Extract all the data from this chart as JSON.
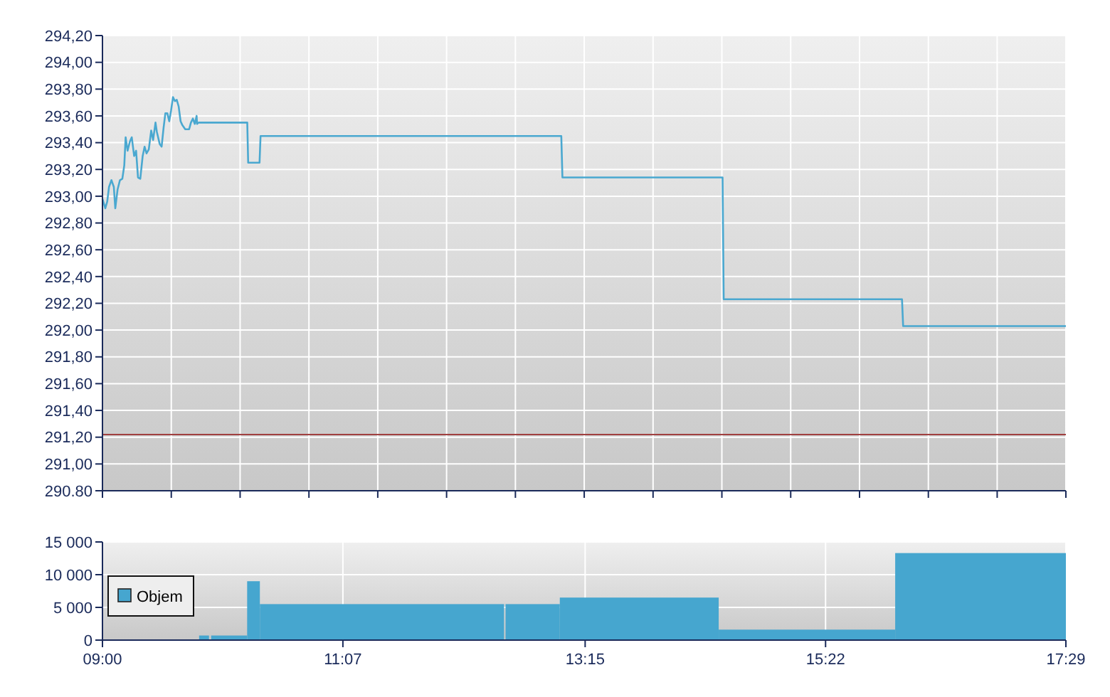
{
  "chart_data": [
    {
      "type": "line",
      "series": [
        {
          "color": "#4aa8d0",
          "x": [
            9.0,
            9.025,
            9.042,
            9.058,
            9.079,
            9.1,
            9.113,
            9.133,
            9.154,
            9.175,
            9.192,
            9.204,
            9.221,
            9.242,
            9.258,
            9.279,
            9.296,
            9.313,
            9.333,
            9.354,
            9.371,
            9.388,
            9.408,
            9.429,
            9.446,
            9.467,
            9.479,
            9.504,
            9.521,
            9.538,
            9.554,
            9.571,
            9.588,
            9.604,
            9.621,
            9.638,
            9.654,
            9.671,
            9.688,
            9.704,
            9.729,
            9.763,
            9.779,
            9.796,
            9.813,
            9.829,
            9.833,
            9.846,
            10.275,
            10.283,
            10.383,
            10.392,
            13.04,
            13.05,
            14.46,
            14.47,
            16.04,
            16.05,
            17.483
          ],
          "values": [
            292.98,
            292.91,
            292.96,
            293.07,
            293.12,
            293.07,
            292.91,
            293.05,
            293.12,
            293.13,
            293.23,
            293.44,
            293.34,
            293.41,
            293.44,
            293.3,
            293.34,
            293.14,
            293.13,
            293.3,
            293.37,
            293.32,
            293.35,
            293.49,
            293.42,
            293.55,
            293.48,
            293.39,
            293.37,
            293.51,
            293.62,
            293.62,
            293.56,
            293.64,
            293.74,
            293.71,
            293.72,
            293.67,
            293.56,
            293.53,
            293.5,
            293.5,
            293.55,
            293.58,
            293.54,
            293.6,
            293.54,
            293.55,
            293.55,
            293.25,
            293.25,
            293.45,
            293.45,
            293.14,
            293.14,
            292.23,
            292.23,
            292.03,
            292.03
          ]
        }
      ],
      "xlim": [
        9,
        17.483
      ],
      "xticks": [
        {
          "value": 9,
          "label": null
        },
        {
          "value": 9.606,
          "label": null
        },
        {
          "value": 10.212,
          "label": null
        },
        {
          "value": 10.818,
          "label": null
        },
        {
          "value": 11.424,
          "label": null
        },
        {
          "value": 12.03,
          "label": null
        },
        {
          "value": 12.636,
          "label": null
        },
        {
          "value": 13.242,
          "label": null
        },
        {
          "value": 13.848,
          "label": null
        },
        {
          "value": 14.454,
          "label": null
        },
        {
          "value": 15.06,
          "label": null
        },
        {
          "value": 15.666,
          "label": null
        },
        {
          "value": 16.272,
          "label": null
        },
        {
          "value": 16.878,
          "label": null
        },
        {
          "value": 17.483,
          "label": null
        }
      ],
      "ylim": [
        290.8,
        294.2
      ],
      "yticks": [
        {
          "value": 290.8,
          "label": "290.80"
        },
        {
          "value": 291.0,
          "label": "291,00"
        },
        {
          "value": 291.2,
          "label": "291,20"
        },
        {
          "value": 291.4,
          "label": "291,40"
        },
        {
          "value": 291.6,
          "label": "291,60"
        },
        {
          "value": 291.8,
          "label": "291,80"
        },
        {
          "value": 292.0,
          "label": "292,00"
        },
        {
          "value": 292.2,
          "label": "292,20"
        },
        {
          "value": 292.4,
          "label": "292,40"
        },
        {
          "value": 292.6,
          "label": "292,60"
        },
        {
          "value": 292.8,
          "label": "292,80"
        },
        {
          "value": 293.0,
          "label": "293,00"
        },
        {
          "value": 293.2,
          "label": "293,20"
        },
        {
          "value": 293.4,
          "label": "293,40"
        },
        {
          "value": 293.6,
          "label": "293,60"
        },
        {
          "value": 293.8,
          "label": "293,80"
        },
        {
          "value": 294.0,
          "label": "294,00"
        },
        {
          "value": 294.2,
          "label": "294,20"
        }
      ],
      "grid": true,
      "tick_labels": "y",
      "ref_lines": [
        {
          "axis": "y",
          "value": 291.22,
          "color": "#a04040"
        }
      ]
    },
    {
      "type": "histogram",
      "bins": [
        9.851,
        9.938,
        9.957,
        10.274,
        10.386,
        12.536,
        12.549,
        13.027,
        14.426,
        15.98,
        17.483
      ],
      "series": [
        {
          "name": "Objem",
          "color": "#46a6cf",
          "values": [
            700,
            0,
            700,
            9000,
            5500,
            0,
            5500,
            6500,
            1600,
            13300
          ]
        }
      ],
      "xlim": [
        9,
        17.483
      ],
      "xticks": [
        {
          "value": 9,
          "label": "09:00"
        },
        {
          "value": 11.117,
          "label": "11:07"
        },
        {
          "value": 13.25,
          "label": "13:15"
        },
        {
          "value": 15.367,
          "label": "15:22"
        },
        {
          "value": 17.483,
          "label": "17:29"
        }
      ],
      "ylim": [
        0,
        15000
      ],
      "yticks": [
        {
          "value": 0,
          "label": "0"
        },
        {
          "value": 5000,
          "label": "5 000"
        },
        {
          "value": 10000,
          "label": "10 000"
        },
        {
          "value": 15000,
          "label": "15 000"
        }
      ],
      "grid": true,
      "legend": "left"
    }
  ]
}
